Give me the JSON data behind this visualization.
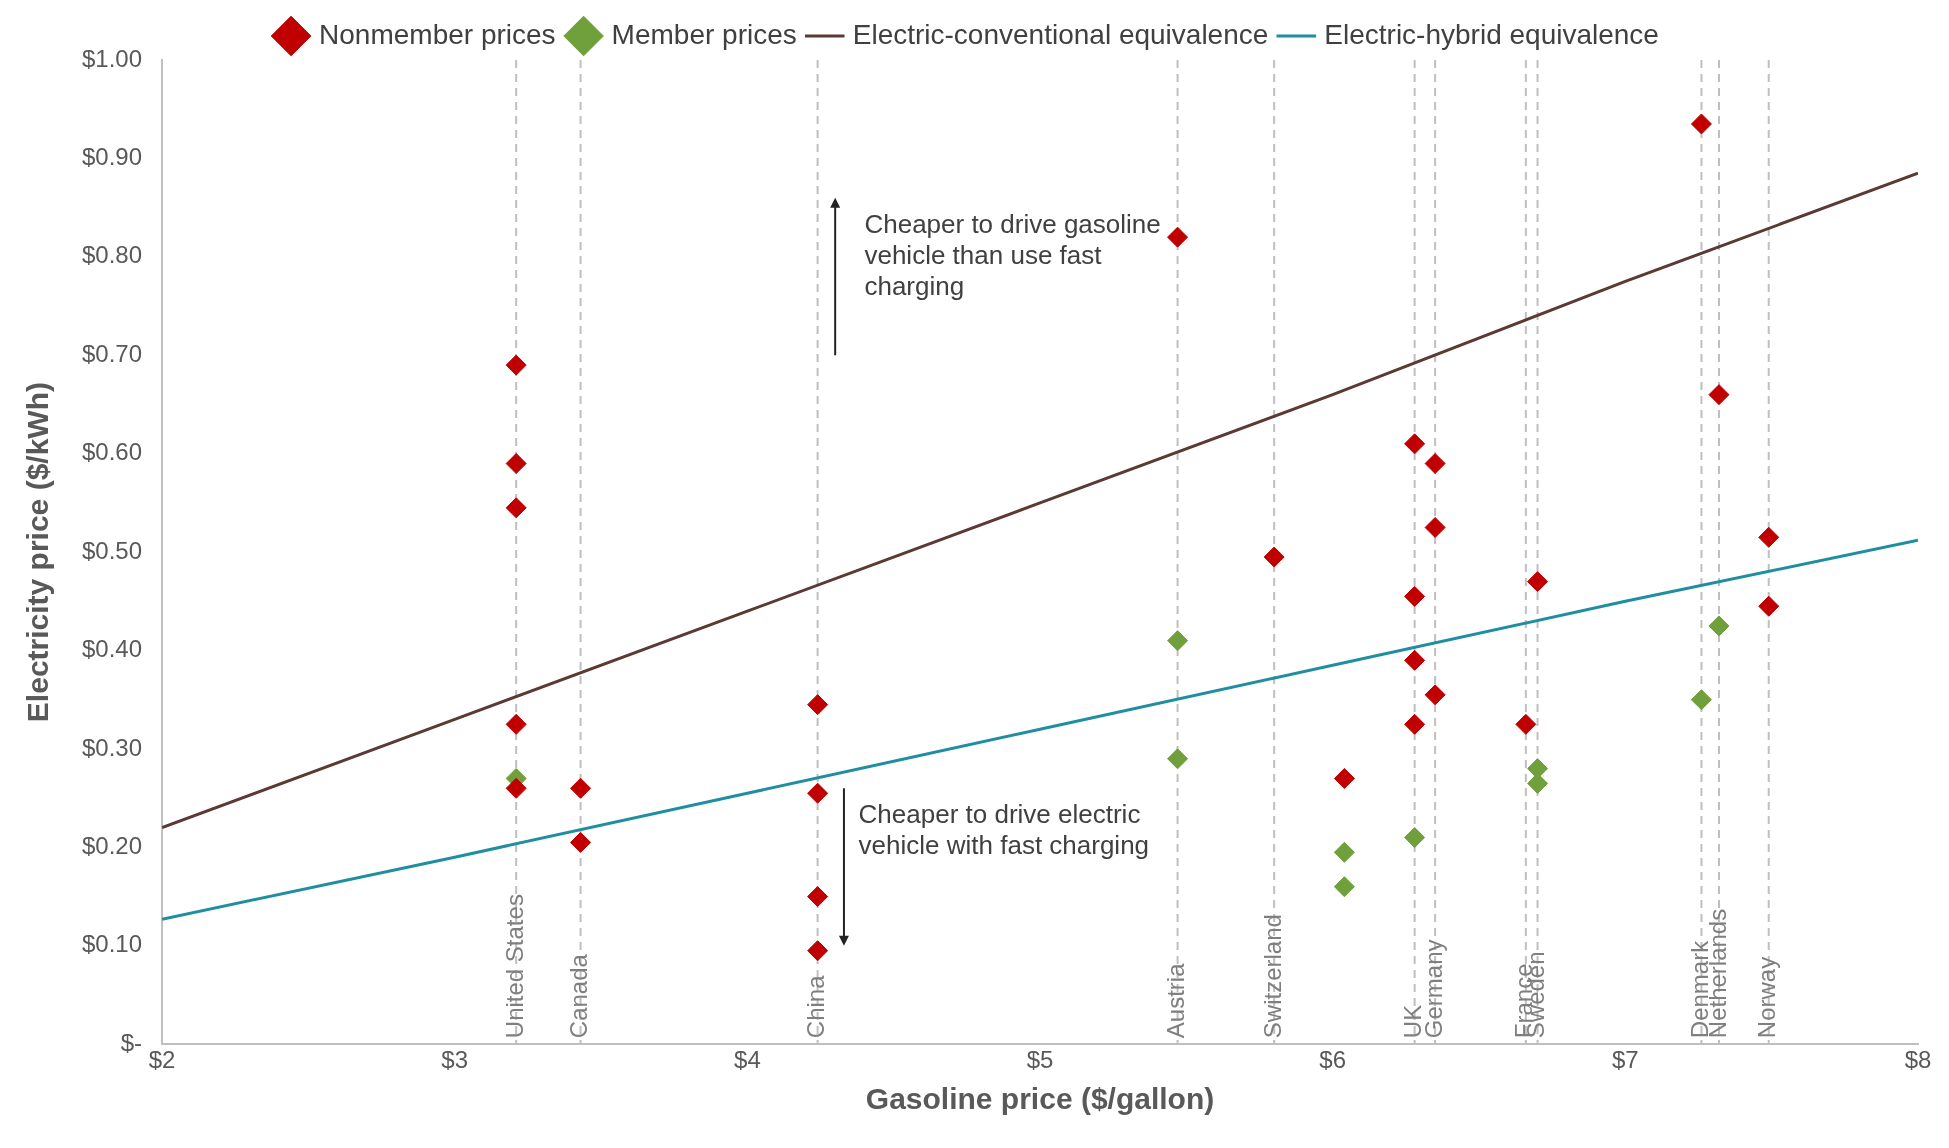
{
  "chart_data": {
    "type": "scatter",
    "xlabel": "Gasoline price ($/gallon)",
    "ylabel": "Electricity price ($/kWh)",
    "xlim": [
      2,
      8
    ],
    "xticks": [
      {
        "value": 2,
        "label": "$2"
      },
      {
        "value": 3,
        "label": "$3"
      },
      {
        "value": 4,
        "label": "$4"
      },
      {
        "value": 5,
        "label": "$5"
      },
      {
        "value": 6,
        "label": "$6"
      },
      {
        "value": 7,
        "label": "$7"
      },
      {
        "value": 8,
        "label": "$8"
      }
    ],
    "ylim": [
      0,
      1
    ],
    "yticks": [
      {
        "value": 0,
        "label": "$-"
      },
      {
        "value": 0.1,
        "label": "$0.10"
      },
      {
        "value": 0.2,
        "label": "$0.20"
      },
      {
        "value": 0.3,
        "label": "$0.30"
      },
      {
        "value": 0.4,
        "label": "$0.40"
      },
      {
        "value": 0.5,
        "label": "$0.50"
      },
      {
        "value": 0.6,
        "label": "$0.60"
      },
      {
        "value": 0.7,
        "label": "$0.70"
      },
      {
        "value": 0.8,
        "label": "$0.80"
      },
      {
        "value": 0.9,
        "label": "$0.90"
      },
      {
        "value": 1,
        "label": "$1.00"
      }
    ],
    "grid": false,
    "legend": "top",
    "marker": "diamond",
    "series": [
      {
        "name": "Nonmember prices",
        "color": "#c00000",
        "x": [
          3.21,
          3.21,
          3.21,
          3.21,
          3.21,
          3.43,
          3.43,
          4.24,
          4.24,
          4.24,
          4.24,
          5.47,
          5.8,
          6.04,
          6.28,
          6.28,
          6.28,
          6.28,
          6.35,
          6.35,
          6.35,
          6.66,
          6.7,
          7.26,
          7.32,
          7.49,
          7.49
        ],
        "values": [
          0.69,
          0.59,
          0.545,
          0.325,
          0.26,
          0.26,
          0.205,
          0.345,
          0.255,
          0.15,
          0.095,
          0.82,
          0.495,
          0.27,
          0.61,
          0.455,
          0.39,
          0.325,
          0.59,
          0.525,
          0.355,
          0.325,
          0.47,
          0.935,
          0.66,
          0.515,
          0.445
        ]
      },
      {
        "name": "Member prices",
        "color": "#70a03c",
        "x": [
          3.21,
          5.47,
          5.47,
          6.04,
          6.04,
          6.28,
          6.7,
          6.7,
          7.26,
          7.32
        ],
        "values": [
          0.27,
          0.41,
          0.29,
          0.195,
          0.16,
          0.21,
          0.28,
          0.265,
          0.35,
          0.425
        ]
      },
      {
        "name": "Electric-conventional equivalence",
        "type": "line",
        "color": "#5a3a32",
        "marker": "none",
        "x": [
          2,
          3,
          4,
          5,
          6,
          7,
          8
        ],
        "values": [
          0.22,
          0.33,
          0.44,
          0.55,
          0.66,
          0.775,
          0.885
        ]
      },
      {
        "name": "Electric-hybrid equivalence",
        "type": "line",
        "color": "#1f8ea0",
        "marker": "none",
        "x": [
          2,
          3,
          4,
          5,
          6,
          7,
          8
        ],
        "values": [
          0.127,
          0.19,
          0.255,
          0.32,
          0.385,
          0.45,
          0.512
        ]
      }
    ],
    "ref_lines": [
      {
        "axis": "x",
        "value": 3.21,
        "label": "United States",
        "color": "#bfbfbf",
        "line_style": "dashed"
      },
      {
        "axis": "x",
        "value": 3.43,
        "label": "Canada",
        "color": "#bfbfbf",
        "line_style": "dashed"
      },
      {
        "axis": "x",
        "value": 4.24,
        "label": "China",
        "color": "#bfbfbf",
        "line_style": "dashed"
      },
      {
        "axis": "x",
        "value": 5.47,
        "label": "Austria",
        "color": "#bfbfbf",
        "line_style": "dashed"
      },
      {
        "axis": "x",
        "value": 5.8,
        "label": "Switzerland",
        "color": "#bfbfbf",
        "line_style": "dashed"
      },
      {
        "axis": "x",
        "value": 6.28,
        "label": "UK",
        "color": "#bfbfbf",
        "line_style": "dashed"
      },
      {
        "axis": "x",
        "value": 6.35,
        "label": "Germany",
        "color": "#bfbfbf",
        "line_style": "dashed"
      },
      {
        "axis": "x",
        "value": 6.66,
        "label": "France",
        "color": "#bfbfbf",
        "line_style": "dashed"
      },
      {
        "axis": "x",
        "value": 6.7,
        "label": "Sweden",
        "color": "#bfbfbf",
        "line_style": "dashed"
      },
      {
        "axis": "x",
        "value": 7.26,
        "label": "Denmark",
        "color": "#bfbfbf",
        "line_style": "dashed"
      },
      {
        "axis": "x",
        "value": 7.32,
        "label": "Netherlands",
        "color": "#bfbfbf",
        "line_style": "dashed"
      },
      {
        "axis": "x",
        "value": 7.49,
        "label": "Norway",
        "color": "#bfbfbf",
        "line_style": "dashed"
      }
    ],
    "annotations": [
      "Cheaper to drive gasoline vehicle than use fast charging",
      "Cheaper to drive electric vehicle with fast charging"
    ]
  }
}
